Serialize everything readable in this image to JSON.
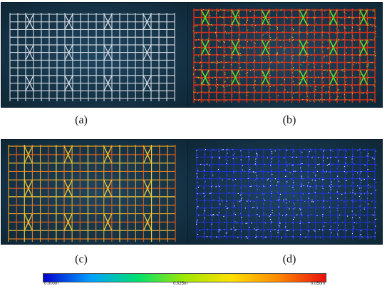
{
  "panels": [
    {
      "id": "a",
      "caption": "(a)",
      "frame_color": "white"
    },
    {
      "id": "b",
      "caption": "(b)",
      "frame_color": "green-red point cloud"
    },
    {
      "id": "c",
      "caption": "(c)",
      "frame_color": "orange-yellow deviation"
    },
    {
      "id": "d",
      "caption": "(d)",
      "frame_color": "blue point cloud"
    }
  ],
  "colorbar": {
    "min_label": "0.000m",
    "mid_label": "0.025m",
    "max_label": "0.050m",
    "colors": [
      "#0000cc",
      "#00a0ff",
      "#00e070",
      "#a0e800",
      "#ffe000",
      "#ff8800",
      "#e81010"
    ]
  },
  "colors": {
    "background": "#1a3a50",
    "frame_a": "#d6dee6",
    "frame_b_red": "#d2301c",
    "frame_b_green": "#5ee02a",
    "frame_c": "#e08a22",
    "frame_d": "#2030d8"
  }
}
